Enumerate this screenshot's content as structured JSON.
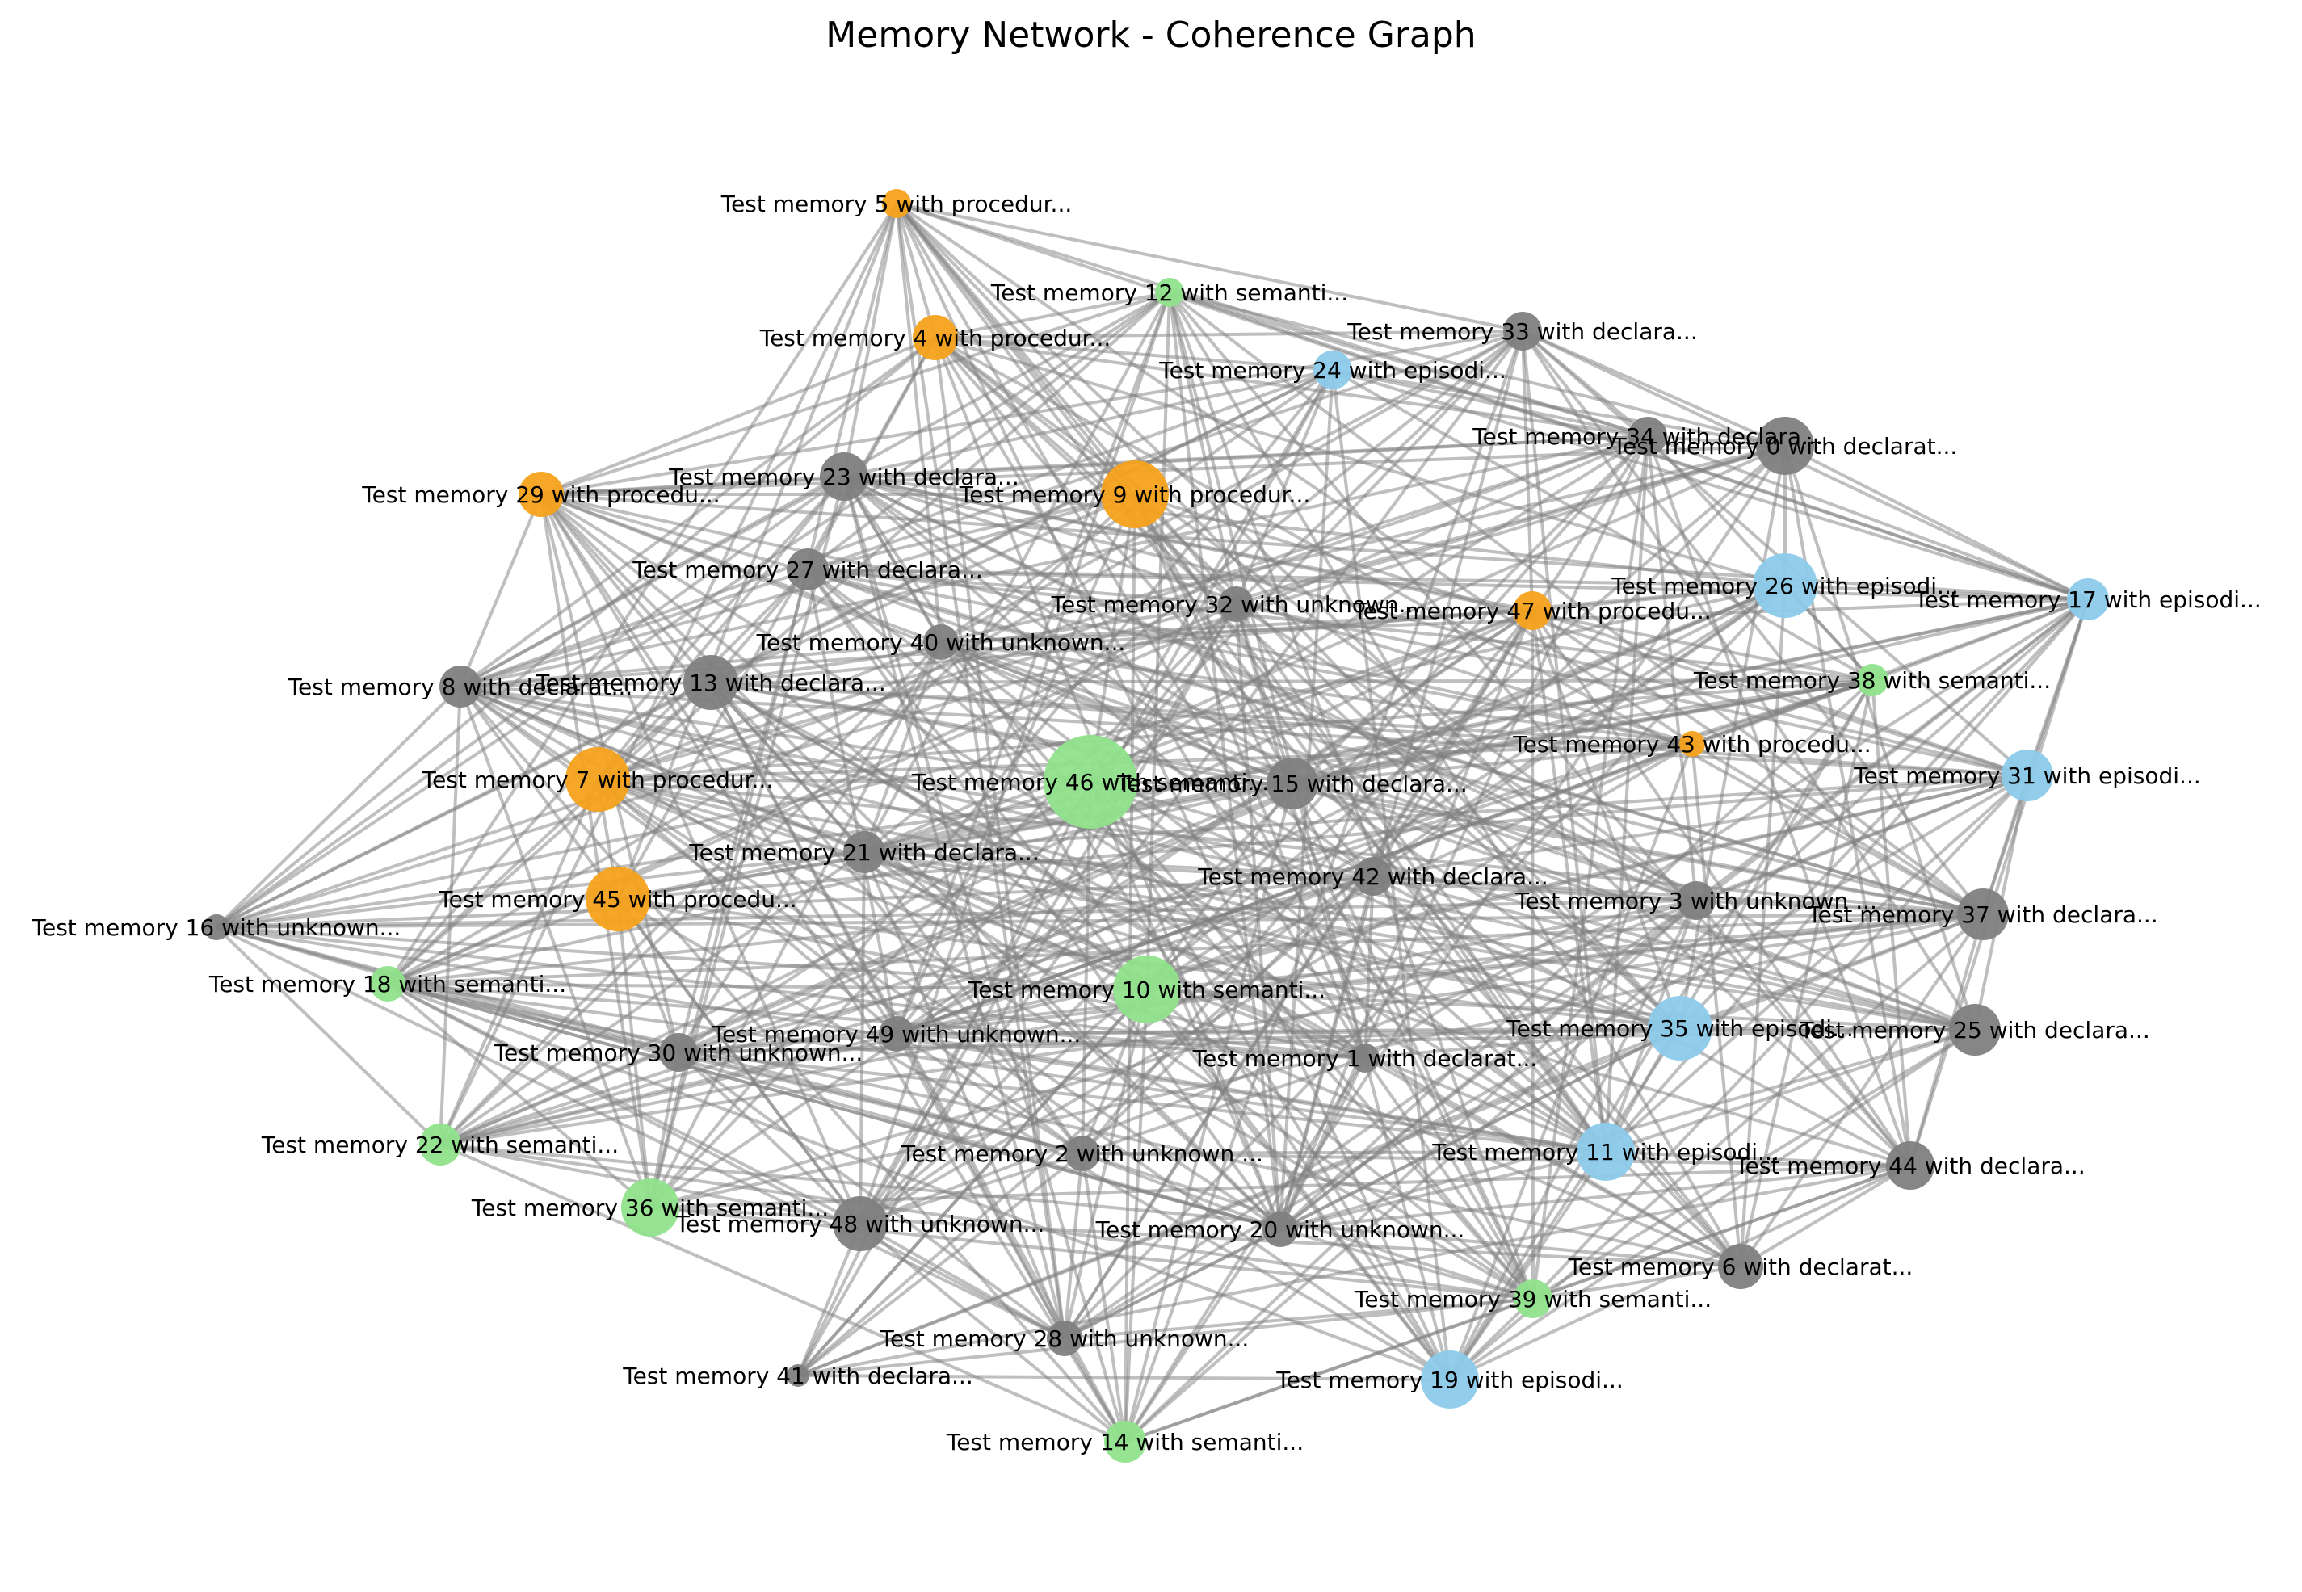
{
  "title": "Memory Network - Coherence Graph",
  "colors": {
    "procedural": "#f5a21c",
    "semantic": "#90e28c",
    "episodic": "#8ccbea",
    "declarative": "#808080",
    "unknown": "#808080",
    "edge": "#808080"
  },
  "nodes": [
    {
      "id": 0,
      "label": "Test memory 0 with declarat...",
      "type": "declarative"
    },
    {
      "id": 1,
      "label": "Test memory 1 with declarat...",
      "type": "declarative"
    },
    {
      "id": 2,
      "label": "Test memory 2 with unknown ...",
      "type": "unknown"
    },
    {
      "id": 3,
      "label": "Test memory 3 with unknown ...",
      "type": "unknown"
    },
    {
      "id": 4,
      "label": "Test memory 4 with procedur...",
      "type": "procedural"
    },
    {
      "id": 5,
      "label": "Test memory 5 with procedur...",
      "type": "procedural"
    },
    {
      "id": 6,
      "label": "Test memory 6 with declarat...",
      "type": "declarative"
    },
    {
      "id": 7,
      "label": "Test memory 7 with procedur...",
      "type": "procedural"
    },
    {
      "id": 8,
      "label": "Test memory 8 with declarat...",
      "type": "declarative"
    },
    {
      "id": 9,
      "label": "Test memory 9 with procedur...",
      "type": "procedural"
    },
    {
      "id": 10,
      "label": "Test memory 10 with semanti...",
      "type": "semantic"
    },
    {
      "id": 11,
      "label": "Test memory 11 with episodi...",
      "type": "episodic"
    },
    {
      "id": 12,
      "label": "Test memory 12 with semanti...",
      "type": "semantic"
    },
    {
      "id": 13,
      "label": "Test memory 13 with declara...",
      "type": "declarative"
    },
    {
      "id": 14,
      "label": "Test memory 14 with semanti...",
      "type": "semantic"
    },
    {
      "id": 15,
      "label": "Test memory 15 with declara...",
      "type": "declarative"
    },
    {
      "id": 16,
      "label": "Test memory 16 with unknown...",
      "type": "unknown"
    },
    {
      "id": 17,
      "label": "Test memory 17 with episodi...",
      "type": "episodic"
    },
    {
      "id": 18,
      "label": "Test memory 18 with semanti...",
      "type": "semantic"
    },
    {
      "id": 19,
      "label": "Test memory 19 with episodi...",
      "type": "episodic"
    },
    {
      "id": 20,
      "label": "Test memory 20 with unknown...",
      "type": "unknown"
    },
    {
      "id": 21,
      "label": "Test memory 21 with declara...",
      "type": "declarative"
    },
    {
      "id": 22,
      "label": "Test memory 22 with semanti...",
      "type": "semantic"
    },
    {
      "id": 23,
      "label": "Test memory 23 with declara...",
      "type": "declarative"
    },
    {
      "id": 24,
      "label": "Test memory 24 with episodi...",
      "type": "episodic"
    },
    {
      "id": 25,
      "label": "Test memory 25 with declara...",
      "type": "declarative"
    },
    {
      "id": 26,
      "label": "Test memory 26 with episodi...",
      "type": "episodic"
    },
    {
      "id": 27,
      "label": "Test memory 27 with declara...",
      "type": "declarative"
    },
    {
      "id": 28,
      "label": "Test memory 28 with unknown...",
      "type": "unknown"
    },
    {
      "id": 29,
      "label": "Test memory 29 with procedu...",
      "type": "procedural"
    },
    {
      "id": 30,
      "label": "Test memory 30 with unknown...",
      "type": "unknown"
    },
    {
      "id": 31,
      "label": "Test memory 31 with episodi...",
      "type": "episodic"
    },
    {
      "id": 32,
      "label": "Test memory 32 with unknown...",
      "type": "unknown"
    },
    {
      "id": 33,
      "label": "Test memory 33 with declara...",
      "type": "declarative"
    },
    {
      "id": 34,
      "label": "Test memory 34 with declara...",
      "type": "declarative"
    },
    {
      "id": 35,
      "label": "Test memory 35 with episodi...",
      "type": "episodic"
    },
    {
      "id": 36,
      "label": "Test memory 36 with semanti...",
      "type": "semantic"
    },
    {
      "id": 37,
      "label": "Test memory 37 with declara...",
      "type": "declarative"
    },
    {
      "id": 38,
      "label": "Test memory 38 with semanti...",
      "type": "semantic"
    },
    {
      "id": 39,
      "label": "Test memory 39 with semanti...",
      "type": "semantic"
    },
    {
      "id": 40,
      "label": "Test memory 40 with unknown...",
      "type": "unknown"
    },
    {
      "id": 41,
      "label": "Test memory 41 with declara...",
      "type": "declarative"
    },
    {
      "id": 42,
      "label": "Test memory 42 with declara...",
      "type": "declarative"
    },
    {
      "id": 43,
      "label": "Test memory 43 with procedu...",
      "type": "procedural"
    },
    {
      "id": 44,
      "label": "Test memory 44 with declara...",
      "type": "declarative"
    },
    {
      "id": 45,
      "label": "Test memory 45 with procedu...",
      "type": "procedural"
    },
    {
      "id": 46,
      "label": "Test memory 46 with semanti...",
      "type": "semantic"
    },
    {
      "id": 47,
      "label": "Test memory 47 with procedu...",
      "type": "procedural"
    },
    {
      "id": 48,
      "label": "Test memory 48 with unknown...",
      "type": "unknown"
    },
    {
      "id": 49,
      "label": "Test memory 49 with unknown...",
      "type": "unknown"
    }
  ]
}
